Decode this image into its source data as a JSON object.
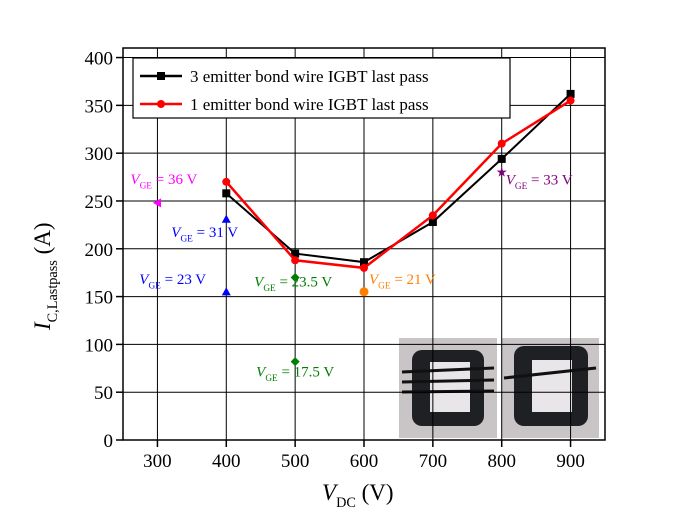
{
  "chart_data": {
    "type": "line",
    "x_label": {
      "symbol": "V",
      "subscript": "DC",
      "text": " (V)"
    },
    "y_label": {
      "symbol": "I",
      "subscript": "C,Lastpass",
      "text": " (A)"
    },
    "xlim": [
      250,
      950
    ],
    "xticks": [
      300,
      400,
      500,
      600,
      700,
      800,
      900
    ],
    "ylim": [
      0,
      410
    ],
    "yticks": [
      0,
      50,
      100,
      150,
      200,
      250,
      300,
      350,
      400
    ],
    "grid": true,
    "legend": "upper left",
    "x": [
      400,
      500,
      600,
      700,
      800,
      900
    ],
    "series": [
      {
        "name": "3 emitter bond wire IGBT last pass",
        "color": "#000000",
        "marker": "square",
        "values": [
          258,
          195,
          186,
          228,
          294,
          362
        ]
      },
      {
        "name": "1 emitter bond wire IGBT last pass",
        "color": "#ff0000",
        "marker": "circle",
        "values": [
          270,
          188,
          180,
          235,
          310,
          355
        ]
      }
    ],
    "annotations": [
      {
        "x": 300,
        "y": 248,
        "color": "#ff00ff",
        "marker": "triangle-left",
        "label": {
          "symbol": "V",
          "subscript": "GE",
          "text": " = 36 V"
        }
      },
      {
        "x": 400,
        "y": 231,
        "color": "#0000ff",
        "marker": "triangle",
        "label": {
          "symbol": "V",
          "subscript": "GE",
          "text": " = 31 V"
        }
      },
      {
        "x": 400,
        "y": 155,
        "color": "#0000ff",
        "marker": "triangle",
        "label": {
          "symbol": "V",
          "subscript": "GE",
          "text": " = 23 V"
        }
      },
      {
        "x": 500,
        "y": 170,
        "color": "#007f00",
        "marker": "diamond",
        "label": {
          "symbol": "V",
          "subscript": "GE",
          "text": " = 23.5 V"
        }
      },
      {
        "x": 500,
        "y": 82,
        "color": "#007f00",
        "marker": "diamond",
        "label": {
          "symbol": "V",
          "subscript": "GE",
          "text": " = 17.5 V"
        }
      },
      {
        "x": 600,
        "y": 155,
        "color": "#ff7f00",
        "marker": "circle",
        "label": {
          "symbol": "V",
          "subscript": "GE",
          "text": " = 21 V"
        }
      },
      {
        "x": 800,
        "y": 280,
        "color": "#7f007f",
        "marker": "star",
        "label": {
          "symbol": "V",
          "subscript": "GE",
          "text": " = 33 V"
        }
      }
    ]
  }
}
